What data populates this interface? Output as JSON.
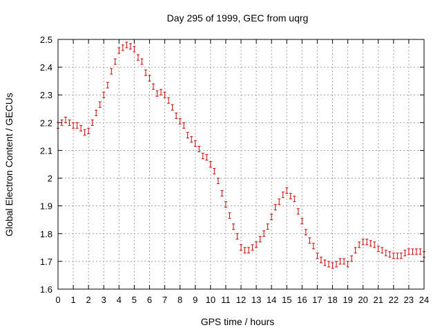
{
  "chart_data": {
    "type": "scatter",
    "title": "Day 295 of 1999, GEC from uqrg",
    "xlabel": "GPS time / hours",
    "ylabel": "Global Electron Content / GECUs",
    "xlim": [
      0,
      24
    ],
    "ylim": [
      1.6,
      2.5
    ],
    "grid": true,
    "legend": "none",
    "x_ticks": [
      "0",
      "1",
      "2",
      "3",
      "4",
      "5",
      "6",
      "7",
      "8",
      "9",
      "10",
      "11",
      "12",
      "13",
      "14",
      "15",
      "16",
      "17",
      "18",
      "19",
      "20",
      "21",
      "22",
      "23",
      "24"
    ],
    "y_ticks": [
      "1.6",
      "1.7",
      "1.8",
      "1.9",
      "2",
      "2.1",
      "2.2",
      "2.3",
      "2.4",
      "2.5"
    ],
    "marker_color": "#cc0000",
    "error": 0.01,
    "x": [
      0,
      0.25,
      0.5,
      0.75,
      1,
      1.25,
      1.5,
      1.75,
      2,
      2.25,
      2.5,
      2.75,
      3,
      3.25,
      3.5,
      3.75,
      4,
      4.25,
      4.5,
      4.75,
      5,
      5.25,
      5.5,
      5.75,
      6,
      6.25,
      6.5,
      6.75,
      7,
      7.25,
      7.5,
      7.75,
      8,
      8.25,
      8.5,
      8.75,
      9,
      9.25,
      9.5,
      9.75,
      10,
      10.25,
      10.5,
      10.75,
      11,
      11.25,
      11.5,
      11.75,
      12,
      12.25,
      12.5,
      12.75,
      13,
      13.25,
      13.5,
      13.75,
      14,
      14.25,
      14.5,
      14.75,
      15,
      15.25,
      15.5,
      15.75,
      16,
      16.25,
      16.5,
      16.75,
      17,
      17.25,
      17.5,
      17.75,
      18,
      18.25,
      18.5,
      18.75,
      19,
      19.25,
      19.5,
      19.75,
      20,
      20.25,
      20.5,
      20.75,
      21,
      21.25,
      21.5,
      21.75,
      22,
      22.25,
      22.5,
      22.75,
      23,
      23.25,
      23.5,
      23.75,
      24
    ],
    "y": [
      2.19,
      2.2,
      2.21,
      2.2,
      2.19,
      2.19,
      2.18,
      2.165,
      2.17,
      2.2,
      2.235,
      2.265,
      2.3,
      2.335,
      2.385,
      2.42,
      2.46,
      2.47,
      2.48,
      2.475,
      2.465,
      2.435,
      2.42,
      2.38,
      2.36,
      2.33,
      2.305,
      2.31,
      2.3,
      2.28,
      2.255,
      2.225,
      2.205,
      2.19,
      2.155,
      2.14,
      2.125,
      2.105,
      2.08,
      2.075,
      2.05,
      2.025,
      1.99,
      1.945,
      1.905,
      1.865,
      1.825,
      1.79,
      1.75,
      1.74,
      1.74,
      1.75,
      1.76,
      1.78,
      1.8,
      1.825,
      1.86,
      1.895,
      1.915,
      1.94,
      1.955,
      1.935,
      1.925,
      1.88,
      1.845,
      1.805,
      1.775,
      1.755,
      1.72,
      1.705,
      1.695,
      1.69,
      1.685,
      1.69,
      1.7,
      1.7,
      1.69,
      1.71,
      1.74,
      1.76,
      1.77,
      1.77,
      1.765,
      1.76,
      1.745,
      1.74,
      1.73,
      1.725,
      1.72,
      1.72,
      1.72,
      1.73,
      1.735,
      1.735,
      1.735,
      1.735,
      1.725
    ]
  }
}
